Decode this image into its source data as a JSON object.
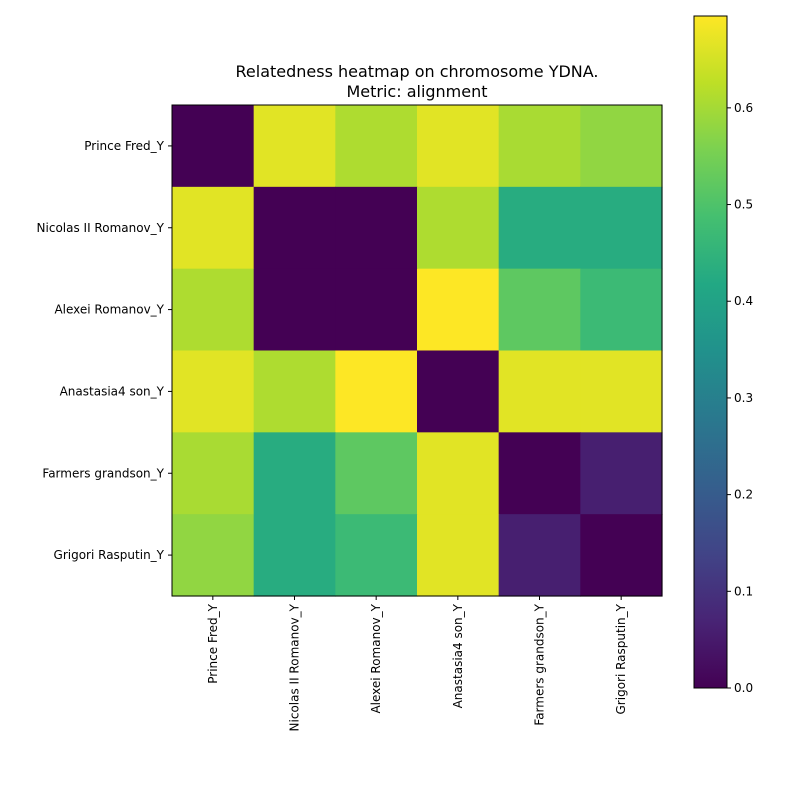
{
  "chart_data": {
    "type": "heatmap",
    "title": "Relatedness heatmap on chromosome YDNA.",
    "subtitle": "Metric: alignment",
    "rows": [
      "Prince Fred_Y",
      "Nicolas II Romanov_Y",
      "Alexei Romanov_Y",
      "Anastasia4 son_Y",
      "Farmers grandson_Y",
      "Grigori Rasputin_Y"
    ],
    "columns": [
      "Prince Fred_Y",
      "Nicolas II Romanov_Y",
      "Alexei Romanov_Y",
      "Anastasia4 son_Y",
      "Farmers grandson_Y",
      "Grigori Rasputin_Y"
    ],
    "values": [
      [
        0.0,
        0.665,
        0.61,
        0.665,
        0.605,
        0.58
      ],
      [
        0.665,
        0.0,
        0.0,
        0.61,
        0.43,
        0.43
      ],
      [
        0.61,
        0.0,
        0.0,
        0.695,
        0.52,
        0.47
      ],
      [
        0.665,
        0.61,
        0.695,
        0.0,
        0.665,
        0.665
      ],
      [
        0.605,
        0.43,
        0.52,
        0.665,
        0.0,
        0.06
      ],
      [
        0.58,
        0.43,
        0.47,
        0.665,
        0.06,
        0.0
      ]
    ],
    "colormap": "viridis",
    "colorbar": {
      "range": [
        0.0,
        0.695
      ],
      "ticks": [
        0.0,
        0.1,
        0.2,
        0.3,
        0.4,
        0.5,
        0.6
      ],
      "tick_labels": [
        "0.0",
        "0.1",
        "0.2",
        "0.3",
        "0.4",
        "0.5",
        "0.6"
      ]
    }
  }
}
